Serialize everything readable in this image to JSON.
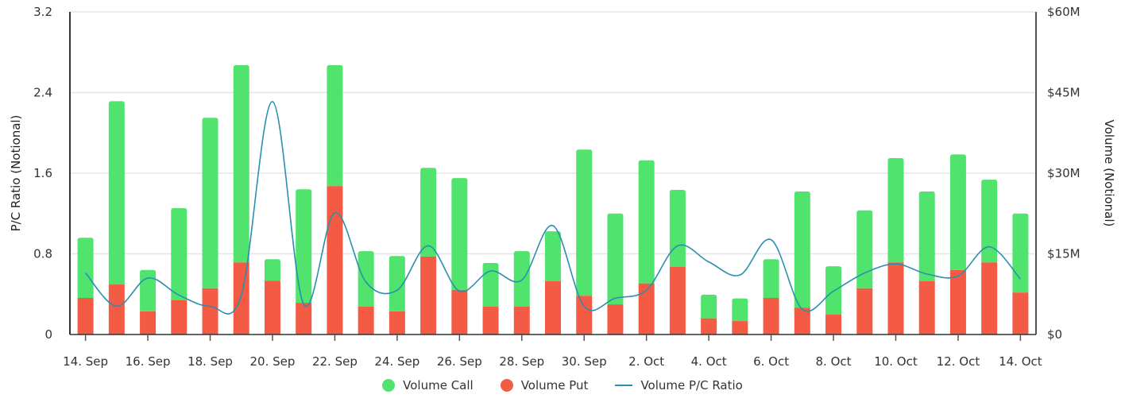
{
  "chart_data": {
    "type": "bar",
    "stacked": true,
    "categories": [
      "14. Sep",
      "15. Sep",
      "16. Sep",
      "17. Sep",
      "18. Sep",
      "19. Sep",
      "20. Sep",
      "21. Sep",
      "22. Sep",
      "23. Sep",
      "24. Sep",
      "25. Sep",
      "26. Sep",
      "27. Sep",
      "28. Sep",
      "29. Sep",
      "30. Sep",
      "1. Oct",
      "2. Oct",
      "3. Oct",
      "4. Oct",
      "5. Oct",
      "6. Oct",
      "7. Oct",
      "8. Oct",
      "9. Oct",
      "10. Oct",
      "11. Oct",
      "12. Oct",
      "13. Oct",
      "14. Oct"
    ],
    "x_tick_labels": [
      "14. Sep",
      "16. Sep",
      "18. Sep",
      "20. Sep",
      "22. Sep",
      "24. Sep",
      "26. Sep",
      "28. Sep",
      "30. Sep",
      "2. Oct",
      "4. Oct",
      "6. Oct",
      "8. Oct",
      "10. Oct",
      "12. Oct",
      "14. Oct"
    ],
    "series": [
      {
        "name": "Volume Put",
        "type": "bar",
        "axis": "right",
        "color": "#f45b45",
        "values": [
          6.8,
          9.3,
          4.3,
          6.4,
          8.6,
          13.4,
          10.0,
          5.9,
          27.6,
          5.2,
          4.3,
          14.5,
          8.3,
          5.2,
          5.2,
          9.9,
          7.2,
          5.6,
          9.5,
          12.6,
          3.0,
          2.5,
          6.8,
          5.0,
          3.7,
          8.6,
          13.4,
          9.9,
          12.0,
          13.4,
          7.8
        ]
      },
      {
        "name": "Volume Call",
        "type": "bar",
        "axis": "right",
        "color": "#50e46e",
        "values": [
          11.2,
          34.1,
          7.7,
          17.1,
          31.7,
          36.7,
          4.0,
          21.1,
          22.5,
          10.3,
          10.3,
          16.5,
          20.8,
          8.1,
          10.3,
          9.3,
          27.2,
          16.9,
          22.9,
          14.3,
          4.4,
          4.2,
          7.2,
          21.6,
          9.0,
          14.5,
          19.4,
          16.7,
          21.5,
          15.4,
          14.7
        ]
      },
      {
        "name": "Volume P/C Ratio",
        "type": "line",
        "axis": "left",
        "color": "#2a8fae",
        "values": [
          0.61,
          0.28,
          0.56,
          0.39,
          0.28,
          0.39,
          2.31,
          0.3,
          1.21,
          0.52,
          0.44,
          0.88,
          0.43,
          0.63,
          0.54,
          1.08,
          0.28,
          0.36,
          0.44,
          0.88,
          0.72,
          0.59,
          0.94,
          0.25,
          0.43,
          0.61,
          0.7,
          0.6,
          0.58,
          0.87,
          0.55
        ]
      }
    ],
    "y_left": {
      "label": "P/C Ratio (Notional)",
      "range": [
        0,
        3.2
      ],
      "ticks": [
        "0",
        "0.8",
        "1.6",
        "2.4",
        "3.2"
      ]
    },
    "y_right": {
      "label": "Volume (Notional)",
      "range": [
        0,
        60
      ],
      "ticks": [
        "$0",
        "$15M",
        "$30M",
        "$45M",
        "$60M"
      ]
    },
    "grid": true,
    "legend_position": "bottom"
  },
  "legend": {
    "call": "Volume Call",
    "put": "Volume Put",
    "ratio": "Volume P/C Ratio"
  }
}
